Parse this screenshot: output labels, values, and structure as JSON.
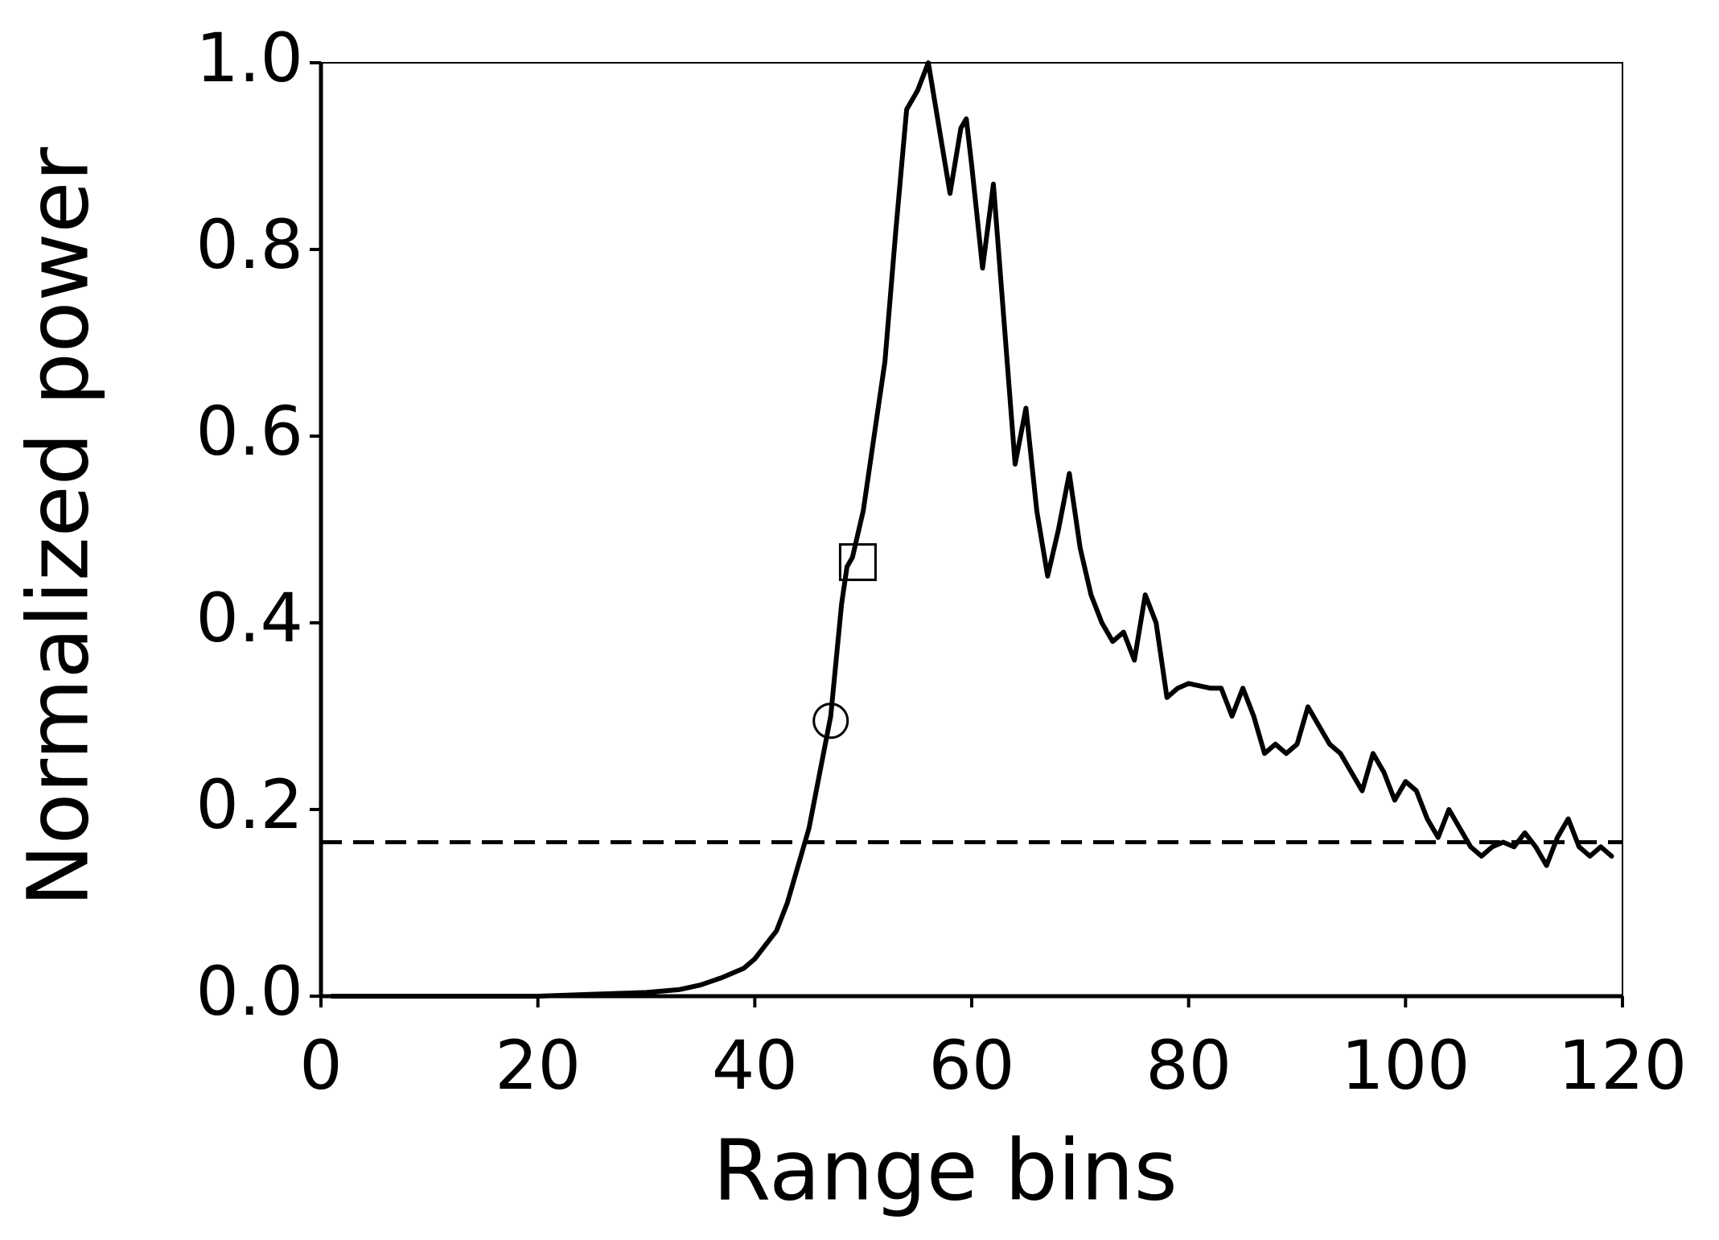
{
  "chart_data": {
    "type": "line",
    "x_label": "Range bins",
    "y_label": "Normalized power",
    "x": [
      1,
      5,
      10,
      15,
      20,
      25,
      30,
      33,
      35,
      37,
      39,
      40,
      41,
      42,
      43,
      44,
      45,
      46,
      47,
      47.5,
      48,
      48.5,
      49,
      50,
      51,
      52,
      53,
      54,
      55,
      56,
      57,
      58,
      59,
      59.5,
      60,
      61,
      62,
      63,
      64,
      65,
      66,
      67,
      68,
      69,
      70,
      71,
      72,
      73,
      74,
      75,
      76,
      77,
      78,
      79,
      80,
      82,
      83,
      84,
      85,
      86,
      87,
      88,
      89,
      90,
      91,
      92,
      93,
      94,
      95,
      96,
      97,
      98,
      99,
      100,
      101,
      102,
      103,
      104,
      105,
      106,
      107,
      108,
      109,
      110,
      111,
      112,
      113,
      114,
      115,
      116,
      117,
      118,
      119
    ],
    "series": [
      {
        "color": "#000000",
        "values": [
          0,
          0,
          0,
          0,
          0,
          0.002,
          0.004,
          0.007,
          0.012,
          0.02,
          0.03,
          0.04,
          0.055,
          0.07,
          0.1,
          0.14,
          0.18,
          0.24,
          0.3,
          0.36,
          0.42,
          0.46,
          0.47,
          0.52,
          0.6,
          0.68,
          0.82,
          0.95,
          0.97,
          1.0,
          0.93,
          0.86,
          0.93,
          0.94,
          0.89,
          0.78,
          0.87,
          0.72,
          0.57,
          0.63,
          0.52,
          0.45,
          0.5,
          0.56,
          0.48,
          0.43,
          0.4,
          0.38,
          0.39,
          0.36,
          0.43,
          0.4,
          0.32,
          0.33,
          0.335,
          0.33,
          0.33,
          0.3,
          0.33,
          0.3,
          0.26,
          0.27,
          0.26,
          0.27,
          0.31,
          0.29,
          0.27,
          0.26,
          0.24,
          0.22,
          0.26,
          0.24,
          0.21,
          0.23,
          0.22,
          0.19,
          0.17,
          0.2,
          0.18,
          0.16,
          0.15,
          0.16,
          0.165,
          0.16,
          0.175,
          0.16,
          0.14,
          0.17,
          0.19,
          0.16,
          0.15,
          0.16,
          0.15
        ]
      }
    ],
    "points": [
      {
        "x": 47,
        "y": 0.295,
        "marker": "circle"
      },
      {
        "x": 49.5,
        "y": 0.465,
        "marker": "square"
      }
    ],
    "threshold": 0.165,
    "threshold_style": "dashed",
    "xlim": [
      0,
      120
    ],
    "ylim": [
      0,
      1
    ],
    "xticks": [
      0,
      20,
      40,
      60,
      80,
      100,
      120
    ],
    "yticks": [
      {
        "value": 0,
        "label": "0.0"
      },
      0.2,
      0.4,
      0.6,
      0.8,
      {
        "value": 1,
        "label": "1.0"
      }
    ]
  }
}
